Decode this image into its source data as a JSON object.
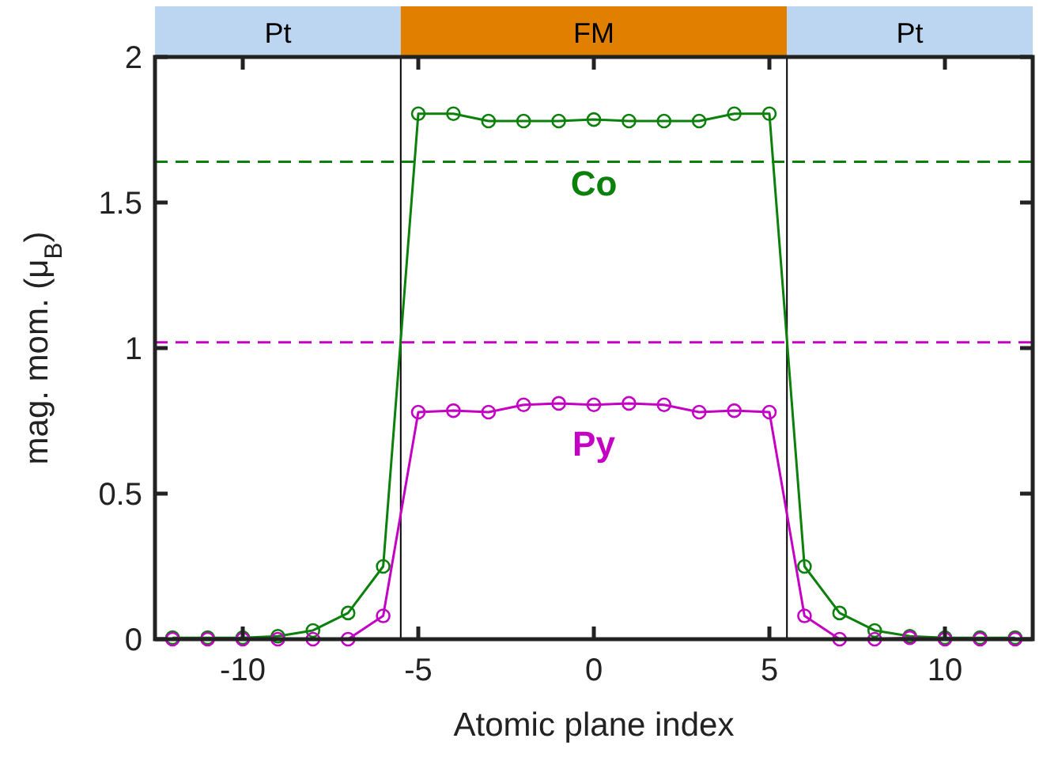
{
  "chart_data": {
    "type": "line",
    "xlabel": "Atomic plane index",
    "ylabel": "mag. mom. (μ$_{B}$)",
    "x": [
      -12,
      -11,
      -10,
      -9,
      -8,
      -7,
      -6,
      -5,
      -4,
      -3,
      -2,
      -1,
      0,
      1,
      2,
      3,
      4,
      5,
      6,
      7,
      8,
      9,
      10,
      11,
      12
    ],
    "series": [
      {
        "name": "Co",
        "color": "#0b800b",
        "values": [
          0.005,
          0.005,
          0.005,
          0.01,
          0.03,
          0.09,
          0.25,
          1.805,
          1.805,
          1.78,
          1.78,
          1.78,
          1.785,
          1.78,
          1.78,
          1.78,
          1.805,
          1.805,
          0.25,
          0.09,
          0.03,
          0.01,
          0.005,
          0.005,
          0.005
        ]
      },
      {
        "name": "Py",
        "color": "#c400c4",
        "values": [
          0,
          0,
          0,
          0,
          0,
          0,
          0.08,
          0.78,
          0.785,
          0.78,
          0.805,
          0.81,
          0.805,
          0.81,
          0.805,
          0.78,
          0.785,
          0.78,
          0.08,
          0,
          0,
          0.005,
          0,
          0,
          0
        ]
      }
    ],
    "xlim": [
      -12.5,
      12.5
    ],
    "xticks": [
      -10,
      -5,
      0,
      5,
      10
    ],
    "ylim": [
      0,
      2
    ],
    "yticks": [
      0,
      0.5,
      1,
      1.5,
      2
    ],
    "marker": "circle",
    "line_style": "solid",
    "grid": false,
    "annotations": [
      "Pt",
      "FM",
      "Pt"
    ],
    "ref_lines": [
      {
        "axis": "x",
        "value": -5.5,
        "color": "#000000",
        "line_style": "solid"
      },
      {
        "axis": "x",
        "value": 5.5,
        "color": "#000000",
        "line_style": "solid"
      },
      {
        "axis": "y",
        "value": 1.64,
        "color": "#0b800b",
        "line_style": "dashed"
      },
      {
        "axis": "y",
        "value": 1.02,
        "color": "#c400c4",
        "line_style": "dashed"
      }
    ]
  }
}
